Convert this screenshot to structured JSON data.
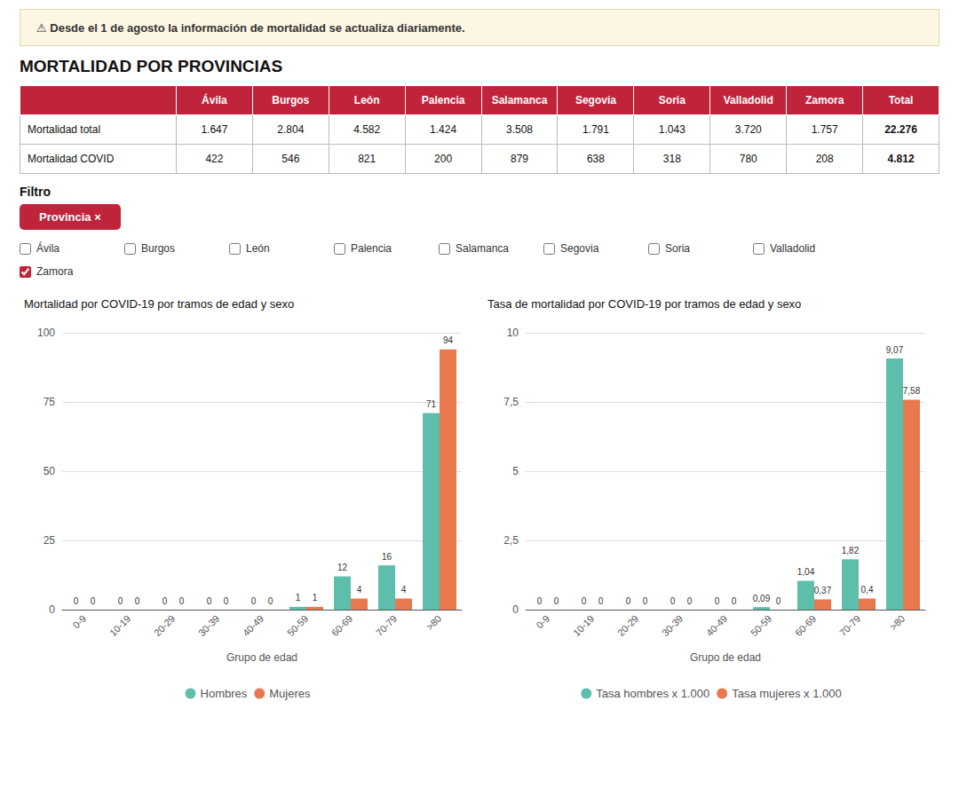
{
  "title": "MORTALIDAD POR PROVINCIAS",
  "annotations": [
    {
      "text": "⚠ Desde el 1 de agosto la información de mortalidad se actualiza diariamente.",
      "color": "#fdf6e3"
    }
  ],
  "table": {
    "color": "#c0243b",
    "columns": [
      "Ávila",
      "Burgos",
      "León",
      "Palencia",
      "Salamanca",
      "Segovia",
      "Soria",
      "Valladolid",
      "Zamora",
      "Total"
    ],
    "rows": [
      {
        "label": "Mortalidad total",
        "values": [
          "1.647",
          "2.804",
          "4.582",
          "1.424",
          "3.508",
          "1.791",
          "1.043",
          "3.720",
          "1.757",
          "22.276"
        ]
      },
      {
        "label": "Mortalidad COVID",
        "values": [
          "422",
          "546",
          "821",
          "200",
          "879",
          "638",
          "318",
          "780",
          "208",
          "4.812"
        ]
      }
    ]
  },
  "filter": {
    "label": "Filtro",
    "button": "Provincia ×",
    "color": "#c0243b",
    "options": [
      {
        "name": "Ávila",
        "checked": false
      },
      {
        "name": "Burgos",
        "checked": false
      },
      {
        "name": "León",
        "checked": false
      },
      {
        "name": "Palencia",
        "checked": false
      },
      {
        "name": "Salamanca",
        "checked": false
      },
      {
        "name": "Segovia",
        "checked": false
      },
      {
        "name": "Soria",
        "checked": false
      },
      {
        "name": "Valladolid",
        "checked": false
      },
      {
        "name": "Zamora",
        "checked": true
      }
    ]
  },
  "chart_data": [
    {
      "type": "bar",
      "title": "Mortalidad por COVID-19 por tramos de edad y sexo",
      "xlabel": "Grupo de edad",
      "categories": [
        "0-9",
        "10-19",
        "20-29",
        "30-39",
        "40-49",
        "50-59",
        "60-69",
        "70-79",
        ">80"
      ],
      "series": [
        {
          "name": "Hombres",
          "color": "#5dbfab",
          "values": [
            0,
            0,
            0,
            0,
            0,
            1,
            12,
            16,
            71
          ]
        },
        {
          "name": "Mujeres",
          "color": "#e8784d",
          "values": [
            0,
            0,
            0,
            0,
            0,
            1,
            4,
            4,
            94
          ]
        }
      ],
      "ylim": [
        0,
        100
      ],
      "yticks": [
        0,
        25,
        50,
        75,
        100
      ],
      "grid": true,
      "legend": "bottom",
      "data_labels": true
    },
    {
      "type": "bar",
      "title": "Tasa de mortalidad por COVID-19 por tramos de edad y sexo",
      "xlabel": "Grupo de edad",
      "categories": [
        "0-9",
        "10-19",
        "20-29",
        "30-39",
        "40-49",
        "50-59",
        "60-69",
        "70-79",
        ">80"
      ],
      "series": [
        {
          "name": "Tasa hombres x 1.000",
          "color": "#5dbfab",
          "values": [
            0.0,
            0.0,
            0.0,
            0.0,
            0.0,
            0.09,
            1.04,
            1.82,
            9.07
          ],
          "value_labels": [
            "0",
            "0",
            "0",
            "0",
            "0",
            "0,09",
            "1,04",
            "1,82",
            "9,07"
          ]
        },
        {
          "name": "Tasa mujeres x 1.000",
          "color": "#e8784d",
          "values": [
            0.0,
            0.0,
            0.0,
            0.0,
            0.0,
            0.0,
            0.37,
            0.4,
            7.58
          ],
          "value_labels": [
            "0",
            "0",
            "0",
            "0",
            "0",
            "0",
            "0,37",
            "0,4",
            "7,58"
          ]
        }
      ],
      "ylim": [
        0,
        10
      ],
      "yticks": [
        0,
        {
          "value": 2.5,
          "label": "2,5"
        },
        5,
        {
          "value": 7.5,
          "label": "7,5"
        },
        10
      ],
      "grid": true,
      "legend": "bottom",
      "data_labels": true
    }
  ]
}
